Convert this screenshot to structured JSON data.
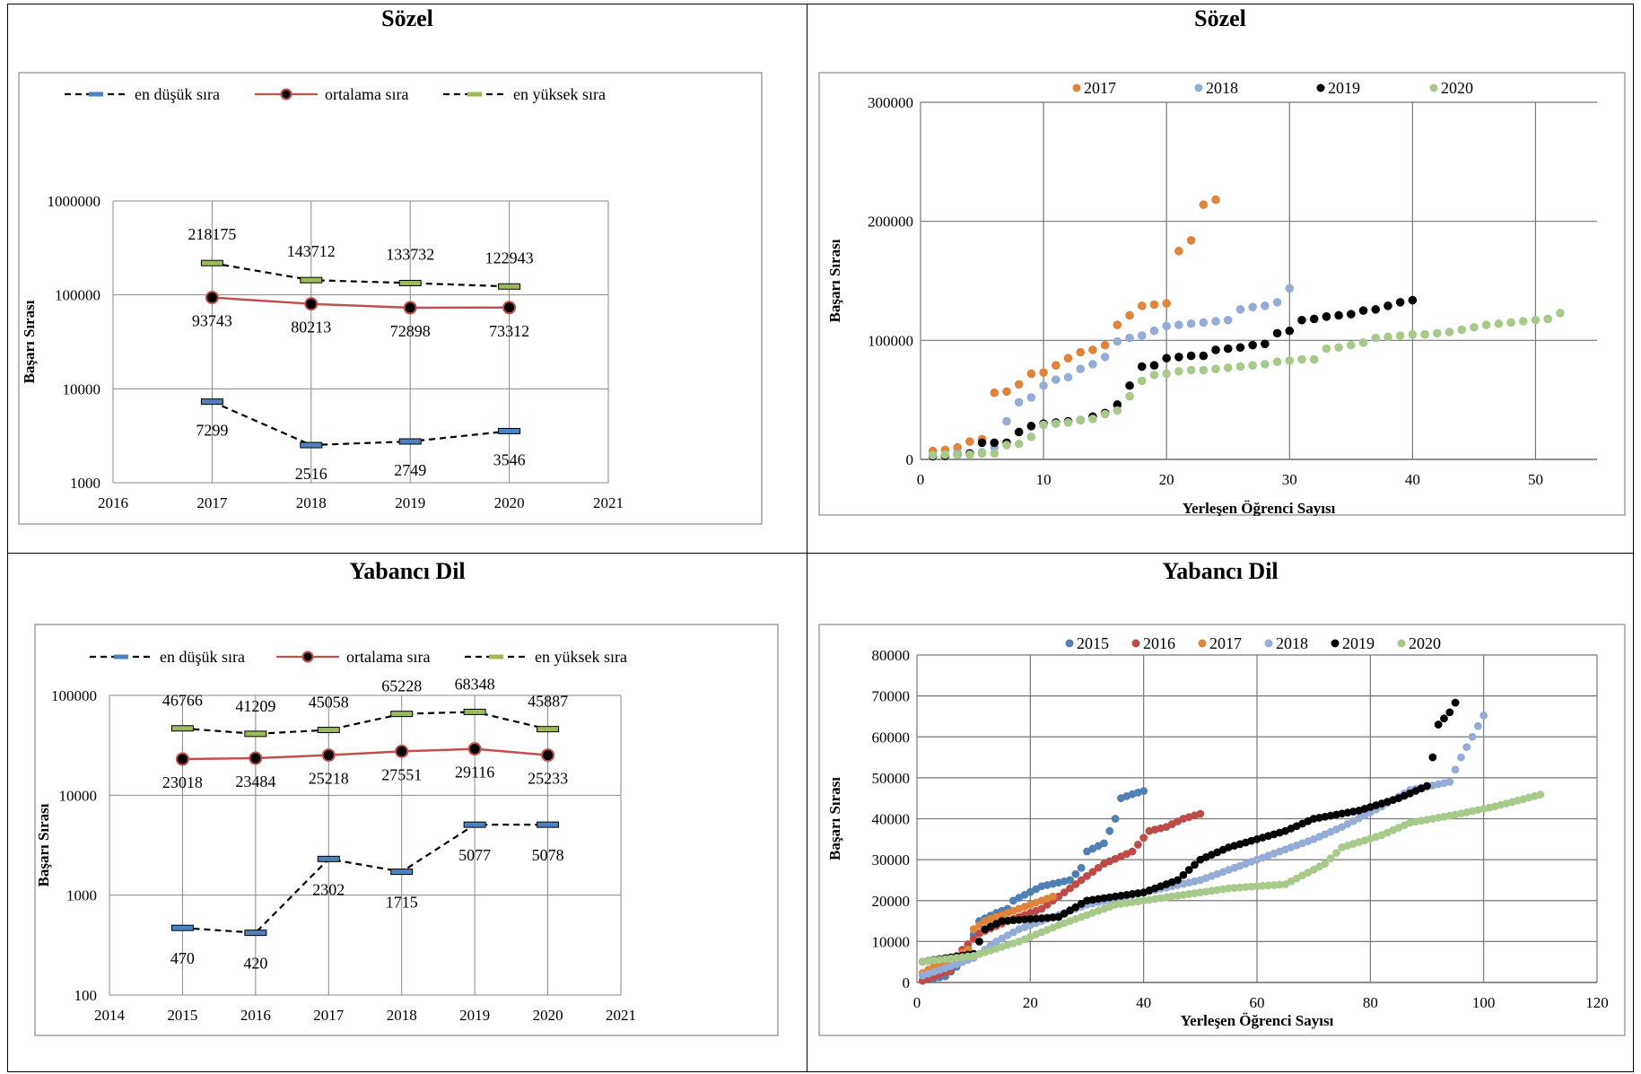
{
  "panels": {
    "top_left_title": "Sözel",
    "top_right_title": "Sözel",
    "bottom_left_title": "Yabancı Dil",
    "bottom_right_title": "Yabancı Dil"
  },
  "colors": {
    "black": "#000000",
    "red": "#c0504d",
    "blue_marker": "#4f81bd",
    "green_marker": "#9bbb59",
    "s2015": "#4f7fb5",
    "s2016": "#be4b48",
    "s2017": "#e0833b",
    "s2018": "#95acd6",
    "s2019": "#000000",
    "s2020": "#a7c98a",
    "grid": "#888888"
  },
  "chart_data": [
    {
      "id": "sozel-line",
      "type": "line",
      "title": "Sözel",
      "ylabel": "Başarı Sırası",
      "xlabel": "",
      "yscale": "log",
      "ylim": [
        1000,
        1000000
      ],
      "xlim": [
        2016,
        2021
      ],
      "xticks": [
        "2016",
        "2017",
        "2018",
        "2019",
        "2020",
        "2021"
      ],
      "yticks": [
        "1000",
        "10000",
        "100000",
        "1000000"
      ],
      "x": [
        2017,
        2018,
        2019,
        2020
      ],
      "series": [
        {
          "name": "en düşük sıra",
          "values": [
            7299,
            2516,
            2749,
            3546
          ],
          "labels": [
            "7299",
            "2516",
            "2749",
            "3546"
          ]
        },
        {
          "name": "ortalama sıra",
          "values": [
            93743,
            80213,
            72898,
            73312
          ],
          "labels": [
            "93743",
            "80213",
            "72898",
            "73312"
          ]
        },
        {
          "name": "en yüksek sıra",
          "values": [
            218175,
            143712,
            133732,
            122943
          ],
          "labels": [
            "218175",
            "143712",
            "133732",
            "122943"
          ]
        }
      ],
      "legend": "top"
    },
    {
      "id": "yabanci-line",
      "type": "line",
      "title": "Yabancı Dil",
      "ylabel": "Başarı Sırası",
      "xlabel": "",
      "yscale": "log",
      "ylim": [
        100,
        100000
      ],
      "xlim": [
        2014,
        2021
      ],
      "xticks": [
        "2014",
        "2015",
        "2016",
        "2017",
        "2018",
        "2019",
        "2020",
        "2021"
      ],
      "yticks": [
        "100",
        "1000",
        "10000",
        "100000"
      ],
      "x": [
        2015,
        2016,
        2017,
        2018,
        2019,
        2020
      ],
      "series": [
        {
          "name": "en düşük sıra",
          "values": [
            470,
            420,
            2302,
            1715,
            5077,
            5078
          ],
          "labels": [
            "470",
            "420",
            "2302",
            "1715",
            "5077",
            "5078"
          ]
        },
        {
          "name": "ortalama sıra",
          "values": [
            23018,
            23484,
            25218,
            27551,
            29116,
            25233
          ],
          "labels": [
            "23018",
            "23484",
            "25218",
            "27551",
            "29116",
            "25233"
          ]
        },
        {
          "name": "en yüksek sıra",
          "values": [
            46766,
            41209,
            45058,
            65228,
            68348,
            45887
          ],
          "labels": [
            "46766",
            "41209",
            "45058",
            "65228",
            "68348",
            "45887"
          ]
        }
      ],
      "legend": "top"
    },
    {
      "id": "sozel-scatter",
      "type": "scatter",
      "title": "Sözel",
      "xlabel": "Yerleşen Öğrenci Sayısı",
      "ylabel": "Başarı Sırası",
      "xlim": [
        0,
        55
      ],
      "ylim": [
        0,
        300000
      ],
      "xticks": [
        "0",
        "10",
        "20",
        "30",
        "40",
        "50"
      ],
      "yticks": [
        "0",
        "100000",
        "200000",
        "300000"
      ],
      "grid": true,
      "legend": "top",
      "series": [
        {
          "name": "2017",
          "color_key": "s2017",
          "y": [
            7000,
            8000,
            10000,
            15000,
            17000,
            56000,
            57000,
            63000,
            72000,
            73000,
            79000,
            85000,
            90000,
            92000,
            96000,
            113000,
            121000,
            129000,
            130000,
            131000,
            175000,
            184000,
            214000,
            218175
          ]
        },
        {
          "name": "2018",
          "color_key": "s2018",
          "y": [
            2516,
            4000,
            5000,
            5000,
            6000,
            10000,
            32000,
            48000,
            52000,
            62000,
            67000,
            69000,
            76000,
            80000,
            86000,
            99000,
            102000,
            104000,
            108000,
            112000,
            113000,
            114000,
            115000,
            116000,
            117000,
            126000,
            128000,
            129000,
            132000,
            143712
          ]
        },
        {
          "name": "2019",
          "color_key": "s2019",
          "y": [
            2749,
            3000,
            4000,
            5000,
            14000,
            14000,
            14000,
            23000,
            28000,
            30000,
            31000,
            32000,
            33000,
            36000,
            39000,
            46000,
            62000,
            78000,
            79000,
            85000,
            86000,
            87000,
            87000,
            92000,
            93000,
            94000,
            96000,
            97000,
            106000,
            108000,
            117000,
            118000,
            120000,
            121000,
            122000,
            125000,
            126000,
            129000,
            132000,
            133732
          ]
        },
        {
          "name": "2020",
          "color_key": "s2020",
          "y": [
            3546,
            4000,
            4000,
            4000,
            5000,
            5000,
            12000,
            13000,
            19000,
            29000,
            30000,
            31000,
            33000,
            34000,
            38000,
            41000,
            53000,
            66000,
            71000,
            72000,
            74000,
            75000,
            75000,
            76000,
            77000,
            78000,
            79000,
            80000,
            82000,
            83000,
            84000,
            84000,
            93000,
            94000,
            96000,
            98000,
            102000,
            103000,
            104000,
            105000,
            105000,
            106000,
            107000,
            109000,
            111000,
            113000,
            114000,
            115000,
            116000,
            117000,
            118000,
            122943
          ]
        }
      ]
    },
    {
      "id": "yabanci-scatter",
      "type": "scatter",
      "title": "Yabancı Dil",
      "xlabel": "Yerleşen Öğrenci Sayısı",
      "ylabel": "Başarı Sırası",
      "xlim": [
        0,
        120
      ],
      "ylim": [
        0,
        80000
      ],
      "xticks": [
        "0",
        "20",
        "40",
        "60",
        "80",
        "100",
        "120"
      ],
      "yticks": [
        "0",
        "10000",
        "20000",
        "30000",
        "40000",
        "50000",
        "60000",
        "70000",
        "80000"
      ],
      "grid": true,
      "legend": "top",
      "series": [
        {
          "name": "2015",
          "color_key": "s2015",
          "anchors": [
            [
              1,
              500
            ],
            [
              5,
              1500
            ],
            [
              8,
              5000
            ],
            [
              11,
              15000
            ],
            [
              14,
              17000
            ],
            [
              16,
              18000
            ],
            [
              17,
              20000
            ],
            [
              22,
              23500
            ],
            [
              27,
              25000
            ],
            [
              29,
              28000
            ],
            [
              30,
              32000
            ],
            [
              33,
              34000
            ],
            [
              35,
              40000
            ],
            [
              36,
              45000
            ],
            [
              38,
              46000
            ],
            [
              40,
              46766
            ]
          ],
          "n": 40
        },
        {
          "name": "2016",
          "color_key": "s2016",
          "anchors": [
            [
              1,
              420
            ],
            [
              6,
              3000
            ],
            [
              8,
              8000
            ],
            [
              11,
              12000
            ],
            [
              16,
              15000
            ],
            [
              22,
              18000
            ],
            [
              28,
              24000
            ],
            [
              33,
              29000
            ],
            [
              38,
              32000
            ],
            [
              41,
              37000
            ],
            [
              44,
              38000
            ],
            [
              47,
              40000
            ],
            [
              50,
              41209
            ]
          ],
          "n": 50
        },
        {
          "name": "2017",
          "color_key": "s2017",
          "anchors": [
            [
              1,
              2302
            ],
            [
              3,
              4000
            ],
            [
              5,
              5000
            ],
            [
              9,
              8000
            ],
            [
              10,
              13000
            ],
            [
              12,
              15000
            ],
            [
              16,
              17000
            ],
            [
              20,
              19000
            ],
            [
              23,
              20500
            ],
            [
              24,
              21000
            ]
          ],
          "n": 24
        },
        {
          "name": "2018",
          "color_key": "s2018",
          "anchors": [
            [
              1,
              1715
            ],
            [
              5,
              3500
            ],
            [
              10,
              6000
            ],
            [
              14,
              10000
            ],
            [
              18,
              13000
            ],
            [
              22,
              15000
            ],
            [
              30,
              19000
            ],
            [
              40,
              22000
            ],
            [
              50,
              25000
            ],
            [
              60,
              30000
            ],
            [
              70,
              35000
            ],
            [
              75,
              38000
            ],
            [
              82,
              43000
            ],
            [
              87,
              47000
            ],
            [
              94,
              49000
            ],
            [
              96,
              55000
            ],
            [
              98,
              60000
            ],
            [
              100,
              65228
            ]
          ],
          "n": 100
        },
        {
          "name": "2019",
          "color_key": "s2019",
          "anchors": [
            [
              1,
              5077
            ],
            [
              10,
              7000
            ],
            [
              12,
              13000
            ],
            [
              15,
              15000
            ],
            [
              25,
              16000
            ],
            [
              30,
              20000
            ],
            [
              40,
              22000
            ],
            [
              46,
              25000
            ],
            [
              50,
              30000
            ],
            [
              55,
              33000
            ],
            [
              65,
              37000
            ],
            [
              70,
              40000
            ],
            [
              78,
              42000
            ],
            [
              85,
              45000
            ],
            [
              90,
              48000
            ],
            [
              91,
              55000
            ],
            [
              92,
              63000
            ],
            [
              94,
              66000
            ],
            [
              95,
              68348
            ]
          ],
          "n": 95
        },
        {
          "name": "2020",
          "color_key": "s2020",
          "anchors": [
            [
              1,
              5078
            ],
            [
              10,
              6500
            ],
            [
              18,
              10000
            ],
            [
              25,
              14000
            ],
            [
              35,
              19000
            ],
            [
              45,
              21000
            ],
            [
              55,
              23000
            ],
            [
              65,
              24000
            ],
            [
              72,
              29000
            ],
            [
              75,
              33000
            ],
            [
              82,
              36000
            ],
            [
              87,
              39000
            ],
            [
              95,
              41000
            ],
            [
              102,
              43000
            ],
            [
              110,
              45887
            ]
          ],
          "n": 110
        }
      ]
    }
  ]
}
